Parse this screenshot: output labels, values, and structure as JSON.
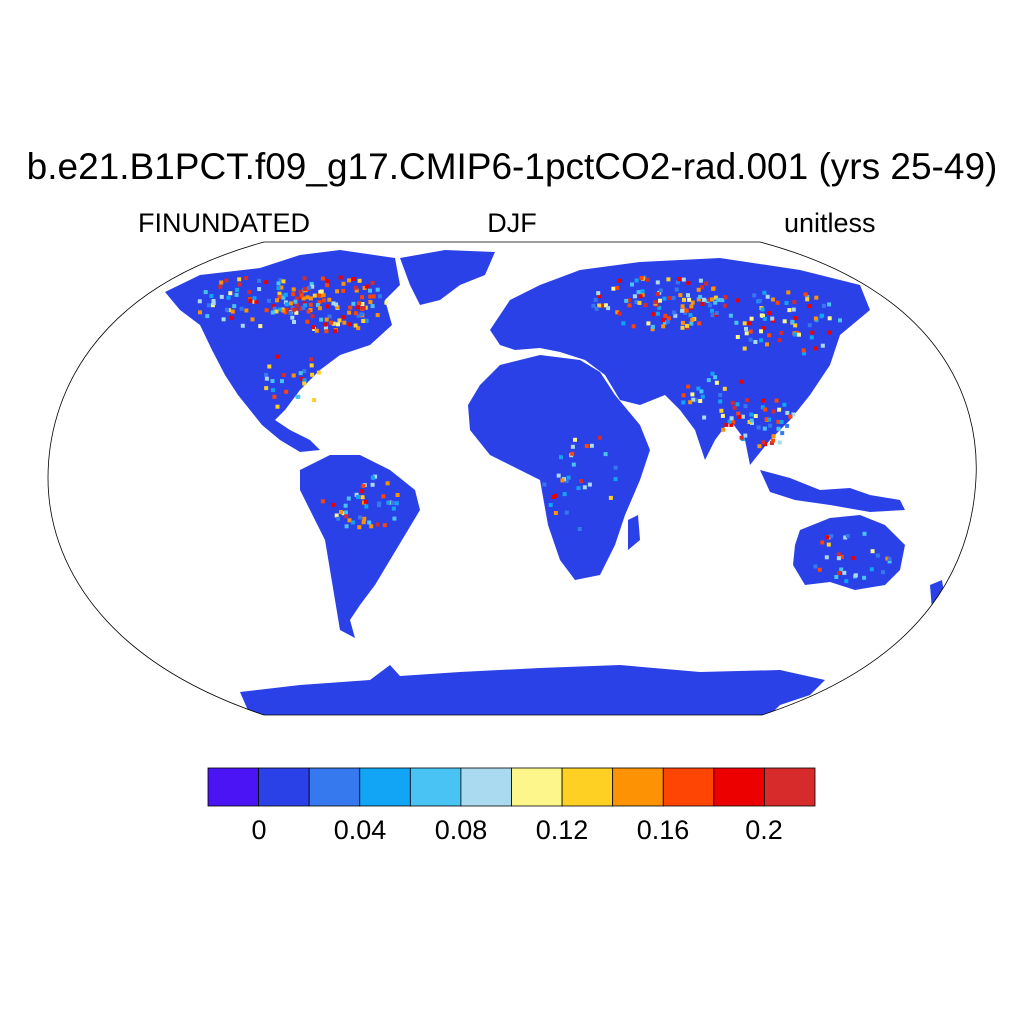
{
  "title": "b.e21.B1PCT.f09_g17.CMIP6-1pctCO2-rad.001 (yrs 25-49)",
  "subtitle_left": "FINUNDATED",
  "subtitle_center": "DJF",
  "subtitle_right": "unitless",
  "map": {
    "projection": "Robinson",
    "land_base_color": "#2b41e8",
    "ocean_color": "#ffffff"
  },
  "colorbar": {
    "colors": [
      "#4a14f4",
      "#2b41e8",
      "#3678ee",
      "#12a5f6",
      "#49c3f4",
      "#a9daef",
      "#fdf68a",
      "#fed023",
      "#fd9205",
      "#fe4504",
      "#ed0000",
      "#d62a2b"
    ],
    "labels": [
      "0",
      "0.04",
      "0.08",
      "0.12",
      "0.16",
      "0.2"
    ],
    "levels": [
      0,
      0.02,
      0.04,
      0.06,
      0.08,
      0.1,
      0.12,
      0.14,
      0.16,
      0.18,
      0.2,
      0.22
    ]
  }
}
